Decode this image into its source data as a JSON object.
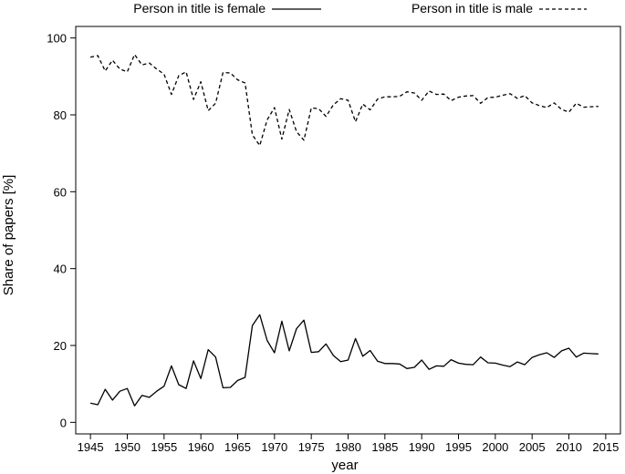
{
  "chart_data": {
    "type": "line",
    "title": "",
    "xlabel": "year",
    "ylabel": "Share of papers [%]",
    "xlim": [
      1943,
      2017
    ],
    "ylim": [
      -3,
      103
    ],
    "x_ticks": [
      "1945",
      "1950",
      "1955",
      "1960",
      "1965",
      "1970",
      "1975",
      "1980",
      "1985",
      "1990",
      "1995",
      "2000",
      "2005",
      "2010",
      "2015"
    ],
    "y_ticks": [
      "0",
      "20",
      "40",
      "60",
      "80",
      "100"
    ],
    "grid": false,
    "legend_position": "top",
    "series": [
      {
        "name": "Person in title is female",
        "line_style": "solid",
        "color": "#000000",
        "x": [
          1945,
          1946,
          1947,
          1948,
          1949,
          1950,
          1951,
          1952,
          1953,
          1954,
          1955,
          1956,
          1957,
          1958,
          1959,
          1960,
          1961,
          1962,
          1963,
          1964,
          1965,
          1966,
          1967,
          1968,
          1969,
          1970,
          1971,
          1972,
          1973,
          1974,
          1975,
          1976,
          1977,
          1978,
          1979,
          1980,
          1981,
          1982,
          1983,
          1984,
          1985,
          1986,
          1987,
          1988,
          1989,
          1990,
          1991,
          1992,
          1993,
          1994,
          1995,
          1996,
          1997,
          1998,
          1999,
          2000,
          2001,
          2002,
          2003,
          2004,
          2005,
          2006,
          2007,
          2008,
          2009,
          2010,
          2011,
          2012,
          2013,
          2014
        ],
        "y": [
          5.0,
          4.6,
          8.6,
          5.8,
          8.1,
          8.8,
          4.3,
          7.0,
          6.5,
          8.1,
          9.4,
          14.7,
          9.8,
          8.8,
          16.0,
          11.4,
          18.9,
          17.0,
          9.0,
          9.1,
          10.9,
          11.7,
          25.2,
          28.0,
          21.3,
          18.1,
          26.3,
          18.6,
          24.4,
          26.6,
          18.2,
          18.4,
          20.4,
          17.4,
          15.8,
          16.2,
          21.8,
          17.2,
          18.7,
          15.9,
          15.3,
          15.3,
          15.2,
          14.0,
          14.3,
          16.2,
          13.8,
          14.7,
          14.6,
          16.3,
          15.4,
          15.1,
          15.0,
          17.0,
          15.5,
          15.4,
          14.9,
          14.5,
          15.7,
          15.0,
          16.9,
          17.6,
          18.1,
          16.9,
          18.6,
          19.3,
          17.0,
          18.0,
          17.9,
          17.8
        ]
      },
      {
        "name": "Person in title is male",
        "line_style": "dashed",
        "color": "#000000",
        "x": [
          1945,
          1946,
          1947,
          1948,
          1949,
          1950,
          1951,
          1952,
          1953,
          1954,
          1955,
          1956,
          1957,
          1958,
          1959,
          1960,
          1961,
          1962,
          1963,
          1964,
          1965,
          1966,
          1967,
          1968,
          1969,
          1970,
          1971,
          1972,
          1973,
          1974,
          1975,
          1976,
          1977,
          1978,
          1979,
          1980,
          1981,
          1982,
          1983,
          1984,
          1985,
          1986,
          1987,
          1988,
          1989,
          1990,
          1991,
          1992,
          1993,
          1994,
          1995,
          1996,
          1997,
          1998,
          1999,
          2000,
          2001,
          2002,
          2003,
          2004,
          2005,
          2006,
          2007,
          2008,
          2009,
          2010,
          2011,
          2012,
          2013,
          2014
        ],
        "y": [
          95.0,
          95.4,
          91.4,
          94.2,
          91.9,
          91.2,
          95.7,
          93.0,
          93.5,
          91.9,
          90.6,
          85.3,
          90.2,
          91.2,
          84.0,
          88.6,
          81.1,
          83.0,
          91.0,
          90.9,
          89.1,
          88.3,
          74.8,
          72.0,
          78.7,
          81.9,
          73.7,
          81.4,
          75.6,
          73.4,
          81.8,
          81.6,
          79.6,
          82.6,
          84.2,
          83.8,
          78.2,
          82.8,
          81.3,
          84.1,
          84.7,
          84.7,
          84.8,
          86.0,
          85.7,
          83.8,
          86.2,
          85.3,
          85.4,
          83.7,
          84.6,
          84.9,
          85.0,
          83.0,
          84.5,
          84.6,
          85.1,
          85.5,
          84.3,
          85.0,
          83.1,
          82.4,
          81.9,
          83.1,
          81.4,
          80.7,
          83.0,
          82.0,
          82.1,
          82.2
        ]
      }
    ]
  }
}
